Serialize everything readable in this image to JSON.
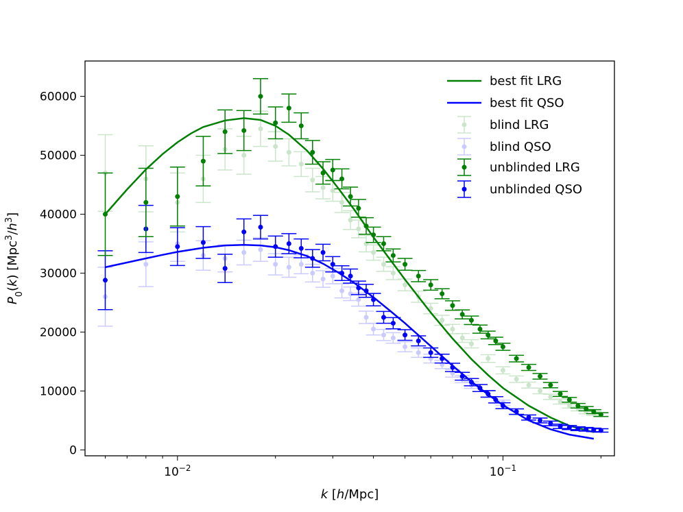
{
  "chart_data": {
    "type": "scatter",
    "title": "",
    "xlabel": "k [h/Mpc]",
    "ylabel": "P0(k) [Mpc3/h3]",
    "xscale": "log",
    "xlim": [
      0.0052,
      0.22
    ],
    "ylim": [
      -1000,
      66000
    ],
    "grid": false,
    "legend_position": "top-right",
    "x_ticks": [
      {
        "value": 0.01,
        "label": "10",
        "exp": "−2"
      },
      {
        "value": 0.1,
        "label": "10",
        "exp": "−1"
      }
    ],
    "y_ticks": [
      {
        "value": 0,
        "label": "0"
      },
      {
        "value": 10000,
        "label": "10000"
      },
      {
        "value": 20000,
        "label": "20000"
      },
      {
        "value": 30000,
        "label": "30000"
      },
      {
        "value": 40000,
        "label": "40000"
      },
      {
        "value": 50000,
        "label": "50000"
      },
      {
        "value": 60000,
        "label": "60000"
      }
    ],
    "colors": {
      "lrg": "#008000",
      "qso": "#0000ff"
    },
    "series": [
      {
        "name": "best fit LRG",
        "kind": "line",
        "color": "#008000",
        "x": [
          0.006,
          0.007,
          0.008,
          0.009,
          0.01,
          0.011,
          0.012,
          0.014,
          0.016,
          0.018,
          0.02,
          0.022,
          0.025,
          0.028,
          0.031,
          0.035,
          0.04,
          0.045,
          0.05,
          0.06,
          0.07,
          0.08,
          0.09,
          0.1,
          0.12,
          0.14,
          0.16,
          0.19
        ],
        "y": [
          40000,
          44200,
          47600,
          50200,
          52200,
          53700,
          54800,
          55900,
          56300,
          56000,
          55000,
          53500,
          50800,
          47700,
          44600,
          40700,
          36100,
          32300,
          28900,
          23300,
          18900,
          15400,
          12700,
          10500,
          7500,
          5500,
          4100,
          3000
        ]
      },
      {
        "name": "best fit QSO",
        "kind": "line",
        "color": "#0000ff",
        "x": [
          0.006,
          0.007,
          0.008,
          0.009,
          0.01,
          0.012,
          0.014,
          0.016,
          0.018,
          0.02,
          0.022,
          0.025,
          0.028,
          0.031,
          0.035,
          0.04,
          0.045,
          0.05,
          0.06,
          0.07,
          0.08,
          0.09,
          0.1,
          0.12,
          0.14,
          0.16,
          0.19
        ],
        "y": [
          31000,
          31800,
          32500,
          33100,
          33600,
          34300,
          34700,
          34800,
          34700,
          34400,
          33900,
          32900,
          31600,
          30200,
          28300,
          25900,
          23600,
          21500,
          17600,
          14300,
          11600,
          9400,
          7600,
          5000,
          3500,
          2600,
          1900
        ]
      },
      {
        "name": "blind LRG",
        "kind": "errorbar",
        "color": "#008000",
        "alpha": 0.2,
        "x": [
          0.006,
          0.008,
          0.01,
          0.012,
          0.014,
          0.016,
          0.018,
          0.02,
          0.022,
          0.024,
          0.026,
          0.028,
          0.03,
          0.032,
          0.034,
          0.036,
          0.038,
          0.04,
          0.043,
          0.046,
          0.05,
          0.055,
          0.06,
          0.065,
          0.07,
          0.075,
          0.08,
          0.09,
          0.1,
          0.11,
          0.12,
          0.13,
          0.14,
          0.15,
          0.16,
          0.17,
          0.18,
          0.19,
          0.2
        ],
        "y": [
          47000,
          46000,
          42000,
          46000,
          51000,
          50000,
          54500,
          51500,
          50500,
          48500,
          45800,
          44500,
          44000,
          42000,
          39000,
          37500,
          35000,
          33500,
          31500,
          30000,
          28000,
          26000,
          24000,
          22000,
          20500,
          19000,
          18000,
          15500,
          13500,
          12000,
          11000,
          10000,
          9000,
          8200,
          7500,
          7000,
          6500,
          6200,
          6000
        ],
        "err": [
          6500,
          5600,
          5000,
          4000,
          3500,
          3200,
          3000,
          2500,
          2300,
          2100,
          2000,
          1900,
          1800,
          1700,
          1600,
          1500,
          1400,
          1300,
          1200,
          1100,
          1000,
          950,
          900,
          850,
          800,
          750,
          700,
          650,
          600,
          550,
          500,
          480,
          450,
          420,
          400,
          380,
          360,
          340,
          320
        ]
      },
      {
        "name": "blind QSO",
        "kind": "errorbar",
        "color": "#0000ff",
        "alpha": 0.2,
        "x": [
          0.006,
          0.008,
          0.01,
          0.012,
          0.014,
          0.016,
          0.018,
          0.02,
          0.022,
          0.024,
          0.026,
          0.028,
          0.03,
          0.032,
          0.034,
          0.036,
          0.038,
          0.04,
          0.043,
          0.046,
          0.05,
          0.055,
          0.06,
          0.065,
          0.07,
          0.075,
          0.08,
          0.09,
          0.1,
          0.11,
          0.12,
          0.13,
          0.14,
          0.15,
          0.16,
          0.17,
          0.18,
          0.19,
          0.2
        ],
        "y": [
          26000,
          31500,
          35000,
          33000,
          32500,
          33500,
          34000,
          31500,
          31000,
          31500,
          30000,
          29000,
          29500,
          27000,
          26500,
          25500,
          22500,
          20500,
          19500,
          19000,
          17500,
          16500,
          15500,
          14500,
          13000,
          12000,
          11000,
          9500,
          8000,
          6500,
          5500,
          5000,
          4500,
          4000,
          3800,
          3600,
          3500,
          3400,
          3300
        ],
        "err": [
          5000,
          3800,
          3000,
          2500,
          2300,
          2100,
          2000,
          1800,
          1700,
          1600,
          1500,
          1400,
          1300,
          1200,
          1150,
          1100,
          1050,
          1000,
          950,
          900,
          850,
          800,
          750,
          700,
          650,
          600,
          550,
          500,
          450,
          420,
          400,
          380,
          360,
          340,
          320,
          300,
          290,
          280,
          270
        ]
      },
      {
        "name": "unblinded LRG",
        "kind": "errorbar",
        "color": "#008000",
        "alpha": 1,
        "x": [
          0.006,
          0.008,
          0.01,
          0.012,
          0.014,
          0.016,
          0.018,
          0.02,
          0.022,
          0.024,
          0.026,
          0.028,
          0.03,
          0.032,
          0.034,
          0.036,
          0.038,
          0.04,
          0.043,
          0.046,
          0.05,
          0.055,
          0.06,
          0.065,
          0.07,
          0.075,
          0.08,
          0.085,
          0.09,
          0.095,
          0.1,
          0.11,
          0.12,
          0.13,
          0.14,
          0.15,
          0.16,
          0.17,
          0.18,
          0.19,
          0.2
        ],
        "y": [
          40000,
          42000,
          43000,
          49000,
          54000,
          54200,
          60000,
          55500,
          58000,
          55000,
          50500,
          47000,
          47500,
          46000,
          43000,
          41000,
          38000,
          36500,
          35000,
          33000,
          31500,
          29500,
          28000,
          26500,
          24500,
          23000,
          22000,
          20500,
          19500,
          18500,
          17500,
          15500,
          14000,
          12500,
          11000,
          9500,
          8500,
          7500,
          7000,
          6500,
          6000
        ],
        "err": [
          7000,
          5800,
          5000,
          4200,
          3700,
          3400,
          3000,
          2700,
          2400,
          2200,
          2000,
          1900,
          1800,
          1700,
          1600,
          1500,
          1400,
          1300,
          1200,
          1100,
          1000,
          950,
          900,
          850,
          800,
          760,
          720,
          690,
          660,
          630,
          600,
          560,
          520,
          480,
          450,
          420,
          400,
          380,
          360,
          340,
          320
        ]
      },
      {
        "name": "unblinded QSO",
        "kind": "errorbar",
        "color": "#0000ff",
        "alpha": 1,
        "x": [
          0.006,
          0.008,
          0.01,
          0.012,
          0.014,
          0.016,
          0.018,
          0.02,
          0.022,
          0.024,
          0.026,
          0.028,
          0.03,
          0.032,
          0.034,
          0.036,
          0.038,
          0.04,
          0.043,
          0.046,
          0.05,
          0.055,
          0.06,
          0.065,
          0.07,
          0.075,
          0.08,
          0.085,
          0.09,
          0.095,
          0.1,
          0.11,
          0.12,
          0.13,
          0.14,
          0.15,
          0.16,
          0.17,
          0.18,
          0.19,
          0.2
        ],
        "y": [
          28800,
          37500,
          34500,
          35200,
          30800,
          37000,
          37800,
          34500,
          35000,
          34200,
          32500,
          33500,
          31500,
          30000,
          29500,
          27500,
          27000,
          25500,
          22500,
          21500,
          19500,
          18500,
          16500,
          15500,
          14000,
          12500,
          11500,
          10500,
          9500,
          8500,
          7500,
          6500,
          5500,
          5000,
          4500,
          4000,
          3800,
          3600,
          3500,
          3400,
          3300
        ],
        "err": [
          5000,
          4000,
          3200,
          2700,
          2400,
          2200,
          2000,
          1800,
          1700,
          1600,
          1500,
          1400,
          1300,
          1250,
          1200,
          1150,
          1100,
          1050,
          1000,
          950,
          900,
          850,
          800,
          750,
          700,
          660,
          620,
          590,
          560,
          530,
          500,
          470,
          440,
          410,
          390,
          370,
          350,
          330,
          310,
          300,
          290
        ]
      }
    ]
  }
}
